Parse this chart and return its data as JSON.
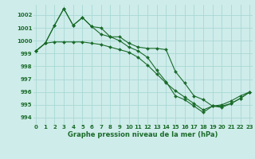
{
  "xlabel": "Graphe pression niveau de la mer (hPa)",
  "background_color": "#ceecea",
  "grid_color": "#a8d8d4",
  "line_color": "#1a6b2a",
  "series1": {
    "x": [
      0,
      1,
      2,
      3,
      4,
      5,
      6,
      7,
      8,
      9,
      10,
      11,
      12,
      13,
      14,
      15,
      16,
      17,
      18,
      19,
      20,
      21,
      22,
      23
    ],
    "y": [
      999.2,
      999.8,
      1001.2,
      1002.5,
      1001.2,
      1001.8,
      1001.1,
      1001.0,
      1000.3,
      1000.3,
      999.8,
      999.5,
      999.4,
      999.4,
      999.3,
      997.6,
      996.7,
      995.7,
      995.4,
      994.9,
      994.8,
      995.1,
      995.5,
      996.0
    ]
  },
  "series2": {
    "x": [
      0,
      1,
      2,
      3,
      4,
      5,
      6,
      7,
      8,
      9,
      10,
      11,
      12,
      13,
      14,
      15,
      16,
      17,
      18,
      19,
      20,
      21,
      22,
      23
    ],
    "y": [
      999.2,
      999.8,
      1001.2,
      1002.5,
      1001.2,
      1001.8,
      1001.1,
      1000.5,
      1000.3,
      1000.0,
      999.5,
      999.2,
      998.7,
      997.7,
      996.8,
      995.7,
      995.4,
      994.9,
      994.4,
      994.9,
      994.9,
      995.1,
      995.5,
      996.0
    ]
  },
  "series3": {
    "x": [
      0,
      1,
      2,
      3,
      4,
      5,
      6,
      7,
      8,
      9,
      10,
      11,
      12,
      13,
      14,
      15,
      16,
      17,
      18,
      19,
      20,
      21,
      22,
      23
    ],
    "y": [
      999.2,
      999.8,
      999.9,
      999.9,
      999.9,
      999.9,
      999.8,
      999.7,
      999.5,
      999.3,
      999.1,
      998.7,
      998.1,
      997.4,
      996.7,
      996.1,
      995.6,
      995.1,
      994.6,
      994.9,
      995.0,
      995.3,
      995.7,
      996.0
    ]
  },
  "ylim": [
    993.5,
    1002.8
  ],
  "xlim": [
    -0.3,
    23.3
  ],
  "yticks": [
    994,
    995,
    996,
    997,
    998,
    999,
    1000,
    1001,
    1002
  ],
  "xticks": [
    0,
    1,
    2,
    3,
    4,
    5,
    6,
    7,
    8,
    9,
    10,
    11,
    12,
    13,
    14,
    15,
    16,
    17,
    18,
    19,
    20,
    21,
    22,
    23
  ],
  "markersize": 2.0,
  "linewidth": 0.8,
  "tick_fontsize": 5.0,
  "xlabel_fontsize": 6.0
}
